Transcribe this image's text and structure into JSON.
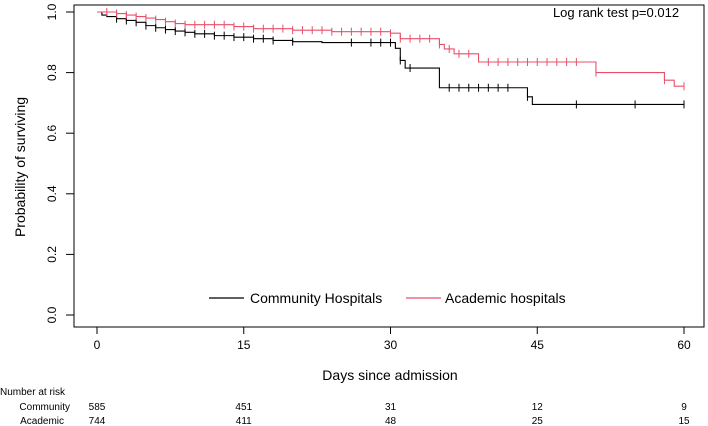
{
  "chart_data": {
    "type": "line",
    "title": "",
    "xlabel": "Days since admission",
    "ylabel": "Probability of surviving",
    "xlim": [
      0,
      60
    ],
    "ylim": [
      0,
      1
    ],
    "x_ticks": [
      0,
      15,
      30,
      45,
      60
    ],
    "y_ticks": [
      0.0,
      0.2,
      0.4,
      0.6,
      0.8,
      1.0
    ],
    "y_tick_labels": [
      "0.0",
      "0.2",
      "0.4",
      "0.6",
      "0.8",
      "1.0"
    ],
    "annotation": "Log rank test p=0.012",
    "legend_position": "bottom-center",
    "series": [
      {
        "name": "Community Hospitals",
        "color": "#000000",
        "steps": [
          [
            0,
            1.0
          ],
          [
            0.5,
            0.99
          ],
          [
            1,
            0.985
          ],
          [
            2,
            0.978
          ],
          [
            3,
            0.972
          ],
          [
            4,
            0.966
          ],
          [
            5,
            0.955
          ],
          [
            6,
            0.948
          ],
          [
            7,
            0.942
          ],
          [
            8,
            0.937
          ],
          [
            9,
            0.933
          ],
          [
            10,
            0.928
          ],
          [
            12,
            0.922
          ],
          [
            14,
            0.917
          ],
          [
            16,
            0.912
          ],
          [
            18,
            0.906
          ],
          [
            20,
            0.902
          ],
          [
            23,
            0.899
          ],
          [
            30.5,
            0.88
          ],
          [
            31,
            0.84
          ],
          [
            31.5,
            0.815
          ],
          [
            35,
            0.75
          ],
          [
            44,
            0.72
          ],
          [
            44.5,
            0.695
          ],
          [
            60,
            0.695
          ]
        ],
        "censor_times": [
          2,
          3,
          4,
          5,
          6,
          7,
          8,
          9,
          10,
          11,
          12,
          13,
          14,
          15,
          16,
          17,
          18,
          20,
          26,
          28,
          29,
          30,
          31,
          32,
          36,
          37,
          38,
          39,
          40,
          41,
          42,
          44,
          49,
          55,
          60
        ]
      },
      {
        "name": "Academic hospitals",
        "color": "#e8506a",
        "steps": [
          [
            0,
            1.0
          ],
          [
            2,
            0.995
          ],
          [
            3,
            0.99
          ],
          [
            4,
            0.985
          ],
          [
            5,
            0.98
          ],
          [
            6,
            0.975
          ],
          [
            7,
            0.968
          ],
          [
            8,
            0.962
          ],
          [
            9,
            0.958
          ],
          [
            14,
            0.952
          ],
          [
            16,
            0.945
          ],
          [
            20,
            0.94
          ],
          [
            24,
            0.935
          ],
          [
            30,
            0.93
          ],
          [
            31,
            0.912
          ],
          [
            35,
            0.893
          ],
          [
            35.5,
            0.878
          ],
          [
            36.5,
            0.862
          ],
          [
            39,
            0.835
          ],
          [
            51,
            0.8
          ],
          [
            58,
            0.775
          ],
          [
            59,
            0.755
          ],
          [
            60,
            0.755
          ]
        ],
        "censor_times": [
          1,
          2,
          3,
          4,
          5,
          6,
          7,
          8,
          9,
          10,
          11,
          12,
          13,
          14,
          15,
          16,
          17,
          18,
          19,
          20,
          21,
          22,
          23,
          24,
          25,
          26,
          27,
          28,
          29,
          30,
          31,
          32,
          33,
          34,
          35,
          36,
          37,
          38,
          40,
          41,
          42,
          43,
          44,
          45,
          46,
          47,
          48,
          49,
          51,
          58,
          60
        ]
      }
    ],
    "risk_table": {
      "header": "Number at risk",
      "rows": [
        {
          "label": "Community",
          "values": [
            "585",
            "451",
            "31",
            "12",
            "9"
          ]
        },
        {
          "label": "Academic",
          "values": [
            "744",
            "411",
            "48",
            "25",
            "15"
          ]
        }
      ]
    }
  }
}
